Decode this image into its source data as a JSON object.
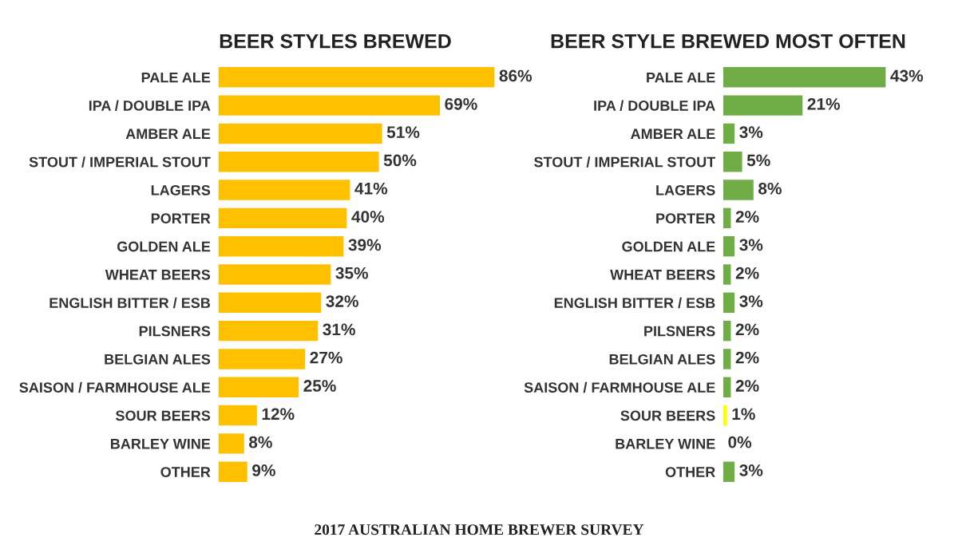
{
  "chart_data": [
    {
      "type": "bar",
      "orientation": "horizontal",
      "title": "BEER STYLES BREWED",
      "categories": [
        "PALE ALE",
        "IPA / DOUBLE IPA",
        "AMBER ALE",
        "STOUT / IMPERIAL STOUT",
        "LAGERS",
        "PORTER",
        "GOLDEN ALE",
        "WHEAT BEERS",
        "ENGLISH BITTER / ESB",
        "PILSNERS",
        "BELGIAN ALES",
        "SAISON / FARMHOUSE ALE",
        "SOUR BEERS",
        "BARLEY WINE",
        "OTHER"
      ],
      "values": [
        86,
        69,
        51,
        50,
        41,
        40,
        39,
        35,
        32,
        31,
        27,
        25,
        12,
        8,
        9
      ],
      "color": "#ffc000",
      "value_labels": [
        "86%",
        "69%",
        "51%",
        "50%",
        "41%",
        "40%",
        "39%",
        "35%",
        "32%",
        "31%",
        "27%",
        "25%",
        "12%",
        "8%",
        "9%"
      ],
      "tick_labels": "y",
      "grid": false,
      "legend": false,
      "annotations": [
        "2017 AUSTRALIAN HOME BREWER SURVEY"
      ]
    },
    {
      "type": "bar",
      "orientation": "horizontal",
      "title": "BEER STYLE BREWED MOST OFTEN",
      "categories": [
        "PALE ALE",
        "IPA / DOUBLE IPA",
        "AMBER ALE",
        "STOUT / IMPERIAL STOUT",
        "LAGERS",
        "PORTER",
        "GOLDEN ALE",
        "WHEAT BEERS",
        "ENGLISH BITTER / ESB",
        "PILSNERS",
        "BELGIAN ALES",
        "SAISON / FARMHOUSE ALE",
        "SOUR BEERS",
        "BARLEY WINE",
        "OTHER"
      ],
      "values": [
        43,
        21,
        3,
        5,
        8,
        2,
        3,
        2,
        3,
        2,
        2,
        2,
        1,
        0,
        3
      ],
      "colors": [
        "#70ad47",
        "#70ad47",
        "#70ad47",
        "#70ad47",
        "#70ad47",
        "#70ad47",
        "#70ad47",
        "#70ad47",
        "#70ad47",
        "#70ad47",
        "#70ad47",
        "#70ad47",
        "#ffff00",
        "#70ad47",
        "#70ad47"
      ],
      "value_labels": [
        "43%",
        "21%",
        "3%",
        "5%",
        "8%",
        "2%",
        "3%",
        "2%",
        "3%",
        "2%",
        "2%",
        "2%",
        "1%",
        "0%",
        "3%"
      ],
      "tick_labels": "y",
      "grid": false,
      "legend": false
    }
  ]
}
